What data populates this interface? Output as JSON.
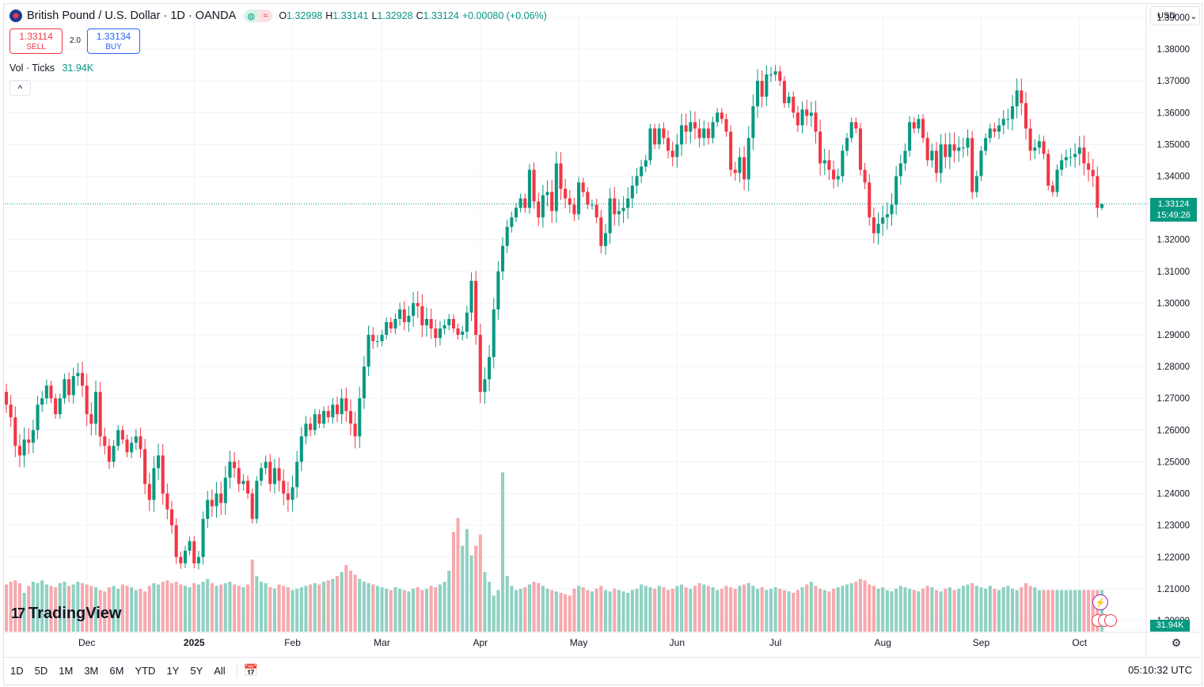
{
  "header": {
    "symbol_title": "British Pound / U.S. Dollar · 1D · OANDA",
    "icon_up": "◍",
    "icon_wave": "≈",
    "ohlc": [
      {
        "k": "O",
        "v": "1.32998"
      },
      {
        "k": "H",
        "v": "1.33141"
      },
      {
        "k": "L",
        "v": "1.32928"
      },
      {
        "k": "C",
        "v": "1.33124"
      },
      {
        "k": "",
        "v": "+0.00080 (+0.06%)"
      }
    ]
  },
  "trade": {
    "sell_price": "1.33114",
    "sell_label": "SELL",
    "spread": "2.0",
    "buy_price": "1.33134",
    "buy_label": "BUY"
  },
  "volume_legend": {
    "label": "Vol · Ticks",
    "value": "31.94K"
  },
  "currency": {
    "value": "USD",
    "caret": "⌄"
  },
  "last_price": {
    "price": "1.33124",
    "countdown": "15:49:26"
  },
  "volume_last": "31.94K",
  "logo_text": "TradingView",
  "logo_mark": "17",
  "collapse_glyph": "^",
  "bolt_glyph": "⚡",
  "gear_glyph": "⚙",
  "calendar_glyph": "📅",
  "ranges": [
    "1D",
    "5D",
    "1M",
    "3M",
    "6M",
    "YTD",
    "1Y",
    "5Y",
    "All"
  ],
  "clock": "05:10:32 UTC",
  "colors": {
    "up": "#089981",
    "down": "#f23645",
    "up_vol": "#8fd1c2",
    "down_vol": "#f6a9ae",
    "grid": "#f0f3fa"
  },
  "chart_data": {
    "type": "candlestick",
    "title": "British Pound / U.S. Dollar · 1D · OANDA",
    "y_ticks": [
      "1.39000",
      "1.38000",
      "1.37000",
      "1.36000",
      "1.35000",
      "1.34000",
      "1.33000",
      "1.32000",
      "1.31000",
      "1.30000",
      "1.29000",
      "1.28000",
      "1.27000",
      "1.26000",
      "1.25000",
      "1.24000",
      "1.23000",
      "1.22000",
      "1.21000",
      "1.20000"
    ],
    "ylim": [
      1.1965,
      1.3905
    ],
    "x_labels": [
      "Dec",
      "2025",
      "Feb",
      "Mar",
      "Apr",
      "May",
      "Jun",
      "Jul",
      "Aug",
      "Sep",
      "Oct"
    ],
    "x_label_index": [
      18,
      42,
      64,
      84,
      106,
      128,
      150,
      172,
      196,
      218,
      240
    ],
    "candles_close": [
      1.268,
      1.264,
      1.255,
      1.252,
      1.257,
      1.256,
      1.26,
      1.268,
      1.27,
      1.274,
      1.27,
      1.265,
      1.27,
      1.276,
      1.271,
      1.277,
      1.278,
      1.274,
      1.265,
      1.262,
      1.272,
      1.258,
      1.255,
      1.25,
      1.255,
      1.26,
      1.257,
      1.253,
      1.256,
      1.258,
      1.254,
      1.243,
      1.238,
      1.248,
      1.252,
      1.24,
      1.235,
      1.23,
      1.22,
      1.218,
      1.222,
      1.225,
      1.218,
      1.22,
      1.232,
      1.238,
      1.236,
      1.24,
      1.237,
      1.245,
      1.25,
      1.248,
      1.243,
      1.244,
      1.24,
      1.232,
      1.244,
      1.248,
      1.25,
      1.243,
      1.248,
      1.244,
      1.24,
      1.238,
      1.242,
      1.25,
      1.258,
      1.262,
      1.26,
      1.265,
      1.262,
      1.266,
      1.264,
      1.268,
      1.265,
      1.27,
      1.266,
      1.262,
      1.258,
      1.27,
      1.28,
      1.29,
      1.288,
      1.288,
      1.29,
      1.294,
      1.292,
      1.295,
      1.298,
      1.294,
      1.296,
      1.3,
      1.299,
      1.293,
      1.295,
      1.292,
      1.289,
      1.292,
      1.293,
      1.295,
      1.292,
      1.29,
      1.291,
      1.297,
      1.307,
      1.29,
      1.272,
      1.276,
      1.283,
      1.298,
      1.31,
      1.318,
      1.324,
      1.327,
      1.33,
      1.333,
      1.33,
      1.342,
      1.332,
      1.327,
      1.334,
      1.335,
      1.329,
      1.344,
      1.336,
      1.333,
      1.331,
      1.328,
      1.338,
      1.335,
      1.331,
      1.331,
      1.327,
      1.318,
      1.322,
      1.333,
      1.328,
      1.329,
      1.33,
      1.333,
      1.337,
      1.34,
      1.343,
      1.345,
      1.355,
      1.35,
      1.355,
      1.352,
      1.348,
      1.346,
      1.35,
      1.356,
      1.354,
      1.357,
      1.355,
      1.352,
      1.355,
      1.352,
      1.357,
      1.36,
      1.358,
      1.354,
      1.342,
      1.341,
      1.346,
      1.339,
      1.352,
      1.362,
      1.37,
      1.365,
      1.372,
      1.372,
      1.373,
      1.37,
      1.363,
      1.365,
      1.36,
      1.356,
      1.361,
      1.359,
      1.36,
      1.354,
      1.344,
      1.345,
      1.342,
      1.339,
      1.34,
      1.348,
      1.352,
      1.357,
      1.355,
      1.342,
      1.338,
      1.327,
      1.322,
      1.325,
      1.327,
      1.328,
      1.331,
      1.34,
      1.344,
      1.348,
      1.357,
      1.355,
      1.358,
      1.352,
      1.345,
      1.348,
      1.341,
      1.35,
      1.346,
      1.35,
      1.348,
      1.349,
      1.349,
      1.352,
      1.335,
      1.34,
      1.348,
      1.352,
      1.355,
      1.354,
      1.356,
      1.358,
      1.358,
      1.362,
      1.367,
      1.363,
      1.355,
      1.348,
      1.349,
      1.351,
      1.347,
      1.337,
      1.335,
      1.342,
      1.345,
      1.346,
      1.346,
      1.347,
      1.349,
      1.344,
      1.342,
      1.34,
      1.33,
      1.3312
    ],
    "volume_ticks_k": [
      34,
      36,
      37,
      35,
      28,
      33,
      36,
      35,
      37,
      34,
      33,
      32,
      35,
      36,
      33,
      34,
      36,
      35,
      34,
      33,
      32,
      30,
      29,
      32,
      33,
      31,
      34,
      33,
      32,
      30,
      31,
      29,
      33,
      35,
      34,
      36,
      37,
      35,
      36,
      34,
      33,
      32,
      35,
      34,
      36,
      38,
      35,
      33,
      34,
      35,
      36,
      34,
      33,
      32,
      34,
      52,
      40,
      36,
      35,
      32,
      31,
      34,
      33,
      32,
      30,
      31,
      32,
      33,
      34,
      35,
      34,
      36,
      37,
      38,
      40,
      43,
      48,
      44,
      41,
      38,
      36,
      35,
      34,
      33,
      32,
      31,
      30,
      32,
      31,
      30,
      29,
      31,
      32,
      30,
      31,
      33,
      32,
      34,
      36,
      44,
      72,
      82,
      62,
      74,
      55,
      62,
      70,
      43,
      36,
      26,
      30,
      115,
      40,
      33,
      30,
      31,
      32,
      34,
      36,
      35,
      33,
      31,
      30,
      29,
      28,
      27,
      26,
      31,
      33,
      32,
      30,
      29,
      31,
      33,
      30,
      29,
      31,
      30,
      29,
      28,
      30,
      31,
      34,
      33,
      32,
      31,
      33,
      32,
      30,
      31,
      33,
      34,
      32,
      31,
      33,
      35,
      34,
      33,
      32,
      30,
      31,
      33,
      32,
      31,
      33,
      34,
      35,
      33,
      31,
      32,
      30,
      31,
      32,
      31,
      30,
      29,
      28,
      30,
      32,
      34,
      36,
      33,
      31,
      30,
      29,
      31,
      32,
      33,
      34,
      35,
      36,
      38,
      37,
      34,
      33,
      31,
      32,
      30,
      29,
      31,
      33,
      32,
      31,
      30,
      29,
      31,
      33,
      32,
      30,
      29,
      31,
      32,
      30,
      31,
      33,
      34,
      35,
      33,
      32,
      31,
      33,
      31,
      30,
      32,
      33,
      31,
      30,
      32,
      35,
      33,
      32
    ],
    "last": {
      "open": 1.32998,
      "high": 1.33141,
      "low": 1.32928,
      "close": 1.33124,
      "volume": "31.94K"
    }
  }
}
